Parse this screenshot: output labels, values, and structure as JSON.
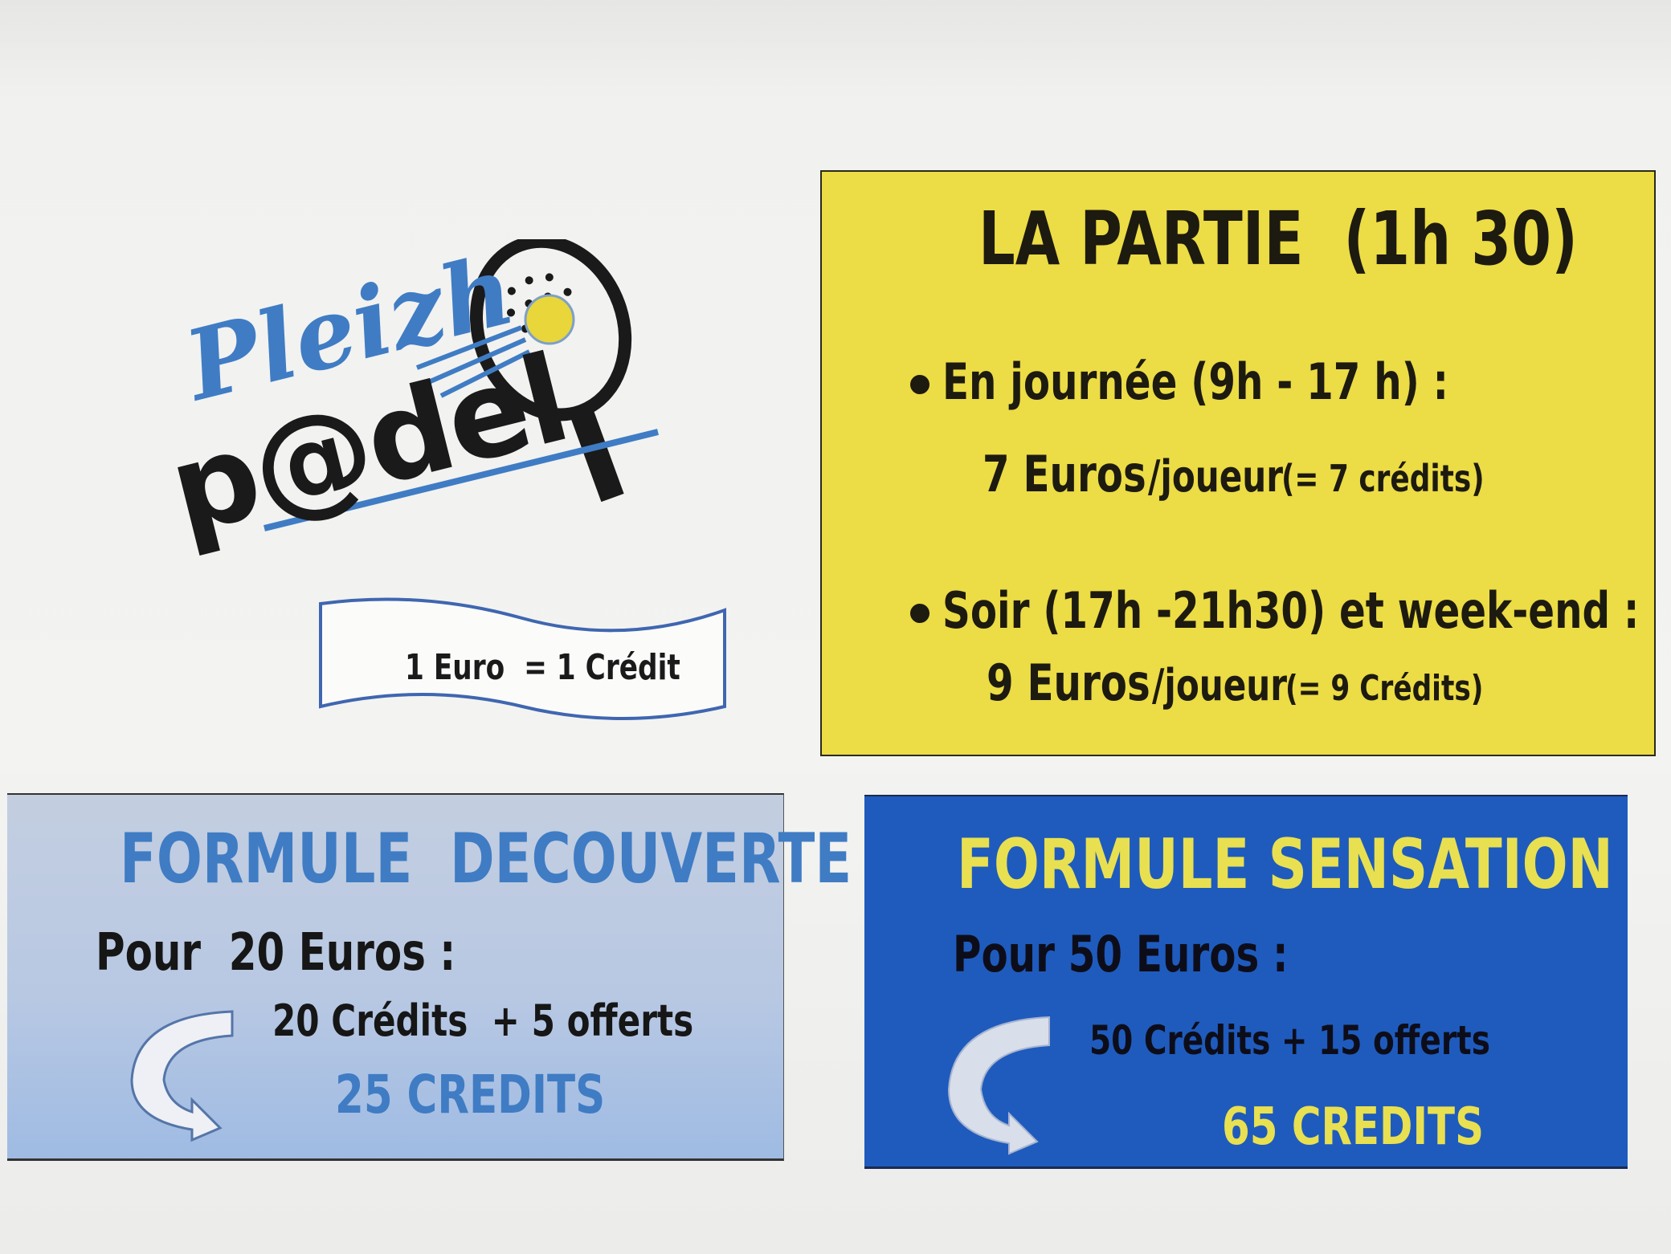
{
  "logo": {
    "text_line1": "Pleizh",
    "text_line2": "p@del",
    "colors": {
      "blue": "#3f7cc4",
      "black": "#1a1a1a",
      "ball": "#e8d63a"
    }
  },
  "rate_banner": {
    "text": "1 Euro  = 1 Crédit"
  },
  "la_partie": {
    "title": "LA PARTIE  (1h 30)",
    "items": [
      {
        "label": "En journée (9h - 17 h) :",
        "price": "7 Euros",
        "unit": "/joueur",
        "credits": "(= 7 crédits)"
      },
      {
        "label": "Soir (17h -21h30) et week-end :",
        "price": "9 Euros",
        "unit": "/joueur",
        "credits": "(= 9 Crédits)"
      }
    ],
    "color": "#ecdc45"
  },
  "formule_decouverte": {
    "title": "FORMULE  DECOUVERTE",
    "price_line": "Pour  20 Euros :",
    "detail": "20 Crédits  + 5 offerts",
    "total": "25 CREDITS",
    "color": "#b8c8e3",
    "accent": "#3f7cc4"
  },
  "formule_sensation": {
    "title": "FORMULE SENSATION",
    "price_line": "Pour 50 Euros :",
    "detail": "50 Crédits + 15 offerts",
    "total": "65 CREDITS",
    "color": "#1f5bbd",
    "accent": "#e8e050"
  }
}
